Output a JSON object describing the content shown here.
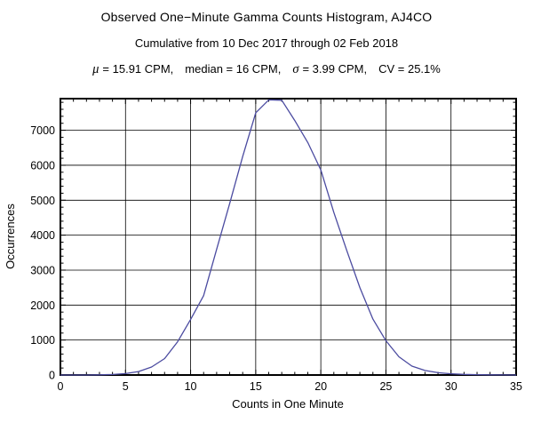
{
  "header": {
    "title": "Observed One−Minute Gamma Counts Histogram, AJ4CO",
    "subtitle": "Cumulative from 10 Dec 2017 through 02 Feb 2018",
    "stats": {
      "mu_symbol": "μ",
      "mu_text": "= 15.91 CPM,",
      "median_text": "median = 16 CPM,",
      "sigma_symbol": "σ",
      "sigma_text": "= 3.99 CPM,",
      "cv_text": "CV = 25.1%"
    }
  },
  "chart_data": {
    "type": "line",
    "title": "Observed One−Minute Gamma Counts Histogram, AJ4CO",
    "subtitle": "Cumulative from 10 Dec 2017 through 02 Feb 2018",
    "xlabel": "Counts in One Minute",
    "ylabel": "Occurrences",
    "xlim": [
      0,
      35
    ],
    "ylim": [
      0,
      7905
    ],
    "grid": true,
    "legend": "none",
    "line_color": "#4b4ba0",
    "x_gridlines": [
      5,
      10,
      15,
      20,
      25,
      30
    ],
    "y_gridlines": [
      1000,
      2000,
      3000,
      4000,
      5000,
      6000,
      7000
    ],
    "x_major_ticks": [
      0,
      5,
      10,
      15,
      20,
      25,
      30,
      35
    ],
    "y_major_ticks": [
      0,
      1000,
      2000,
      3000,
      4000,
      5000,
      6000,
      7000
    ],
    "x_minor_step": 1,
    "y_minor_step": 200,
    "x": [
      0,
      1,
      2,
      3,
      4,
      5,
      6,
      7,
      8,
      9,
      10,
      11,
      12,
      13,
      14,
      15,
      16,
      17,
      18,
      19,
      20,
      21,
      22,
      23,
      24,
      25,
      26,
      27,
      28,
      29,
      30,
      31,
      32,
      33,
      34,
      35
    ],
    "y": [
      0,
      0,
      1,
      4,
      14,
      40,
      100,
      230,
      470,
      950,
      1590,
      2270,
      3600,
      4900,
      6250,
      7500,
      7870,
      7860,
      7280,
      6650,
      5870,
      4650,
      3550,
      2500,
      1600,
      980,
      520,
      255,
      130,
      65,
      35,
      18,
      9,
      4,
      2,
      1
    ],
    "stats_annotation": "μ = 15.91 CPM,  median = 16 CPM,  σ = 3.99 CPM,  CV = 25.1%"
  }
}
